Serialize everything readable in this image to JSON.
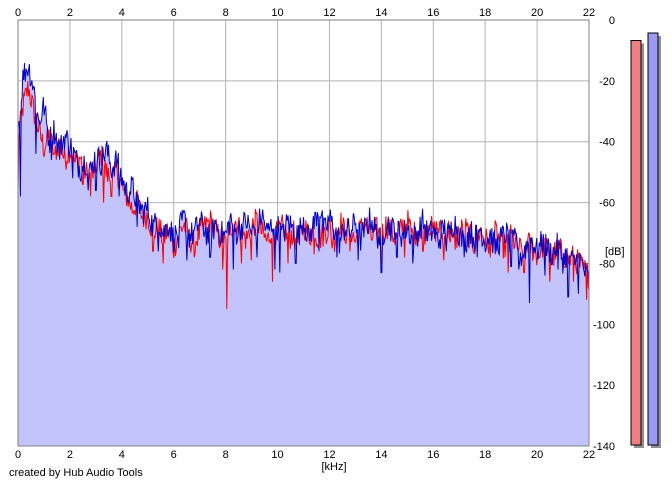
{
  "chart_data": {
    "type": "area",
    "xlabel": "[kHz]",
    "ylabel": "[dB]",
    "xlim": [
      0,
      22
    ],
    "ylim": [
      -140,
      0
    ],
    "x_ticks": [
      "0",
      "2",
      "4",
      "6",
      "8",
      "10",
      "12",
      "14",
      "16",
      "18",
      "20",
      "22"
    ],
    "y_ticks": [
      "0",
      "-20",
      "-40",
      "-60",
      "-80",
      "-100",
      "-120",
      "-140"
    ],
    "grid": true,
    "fill_color": "#c4c4fc",
    "series": [
      {
        "color": "#ff0000",
        "x": [
          0.0,
          0.2,
          0.4,
          0.6,
          0.8,
          1.0,
          1.2,
          1.4,
          1.6,
          1.8,
          2.0,
          2.2,
          2.4,
          2.6,
          2.8,
          3.0,
          3.2,
          3.4,
          3.6,
          3.8,
          4.0,
          4.2,
          4.4,
          4.6,
          4.8,
          5.0,
          5.2,
          5.4,
          5.6,
          5.8,
          6.0,
          6.2,
          6.4,
          6.6,
          6.8,
          7.0,
          7.2,
          7.4,
          7.6,
          7.8,
          8.0,
          8.2,
          8.4,
          8.6,
          8.8,
          9.0,
          9.2,
          9.4,
          9.6,
          9.8,
          10.0,
          10.2,
          10.4,
          10.6,
          10.8,
          11.0,
          11.2,
          11.4,
          11.6,
          11.8,
          12.0,
          12.2,
          12.4,
          12.6,
          12.8,
          13.0,
          13.2,
          13.4,
          13.6,
          13.8,
          14.0,
          14.2,
          14.4,
          14.6,
          14.8,
          15.0,
          15.2,
          15.4,
          15.6,
          15.8,
          16.0,
          16.2,
          16.4,
          16.6,
          16.8,
          17.0,
          17.2,
          17.4,
          17.6,
          17.8,
          18.0,
          18.2,
          18.4,
          18.6,
          18.8,
          19.0,
          19.2,
          19.4,
          19.6,
          19.8,
          20.0,
          20.2,
          20.4,
          20.6,
          20.8,
          21.0,
          21.2,
          21.4,
          21.6,
          21.8,
          22.0
        ],
        "y": [
          -40,
          -28,
          -22,
          -30,
          -36,
          -42,
          -38,
          -44,
          -40,
          -46,
          -42,
          -47,
          -45,
          -50,
          -52,
          -48,
          -44,
          -50,
          -53,
          -49,
          -55,
          -58,
          -62,
          -60,
          -65,
          -64,
          -70,
          -68,
          -72,
          -69,
          -75,
          -70,
          -67,
          -72,
          -73,
          -70,
          -68,
          -66,
          -69,
          -72,
          -74,
          -68,
          -66,
          -70,
          -72,
          -68,
          -66,
          -70,
          -73,
          -68,
          -71,
          -68,
          -72,
          -70,
          -73,
          -67,
          -71,
          -69,
          -72,
          -70,
          -68,
          -72,
          -66,
          -70,
          -68,
          -73,
          -69,
          -66,
          -72,
          -69,
          -71,
          -67,
          -70,
          -72,
          -68,
          -66,
          -71,
          -69,
          -72,
          -66,
          -70,
          -68,
          -72,
          -69,
          -73,
          -70,
          -68,
          -71,
          -74,
          -69,
          -72,
          -74,
          -70,
          -73,
          -75,
          -71,
          -74,
          -76,
          -73,
          -75,
          -77,
          -74,
          -76,
          -78,
          -75,
          -77,
          -79,
          -78,
          -80,
          -82,
          -84
        ],
        "dips": [
          [
            0.0,
            -56
          ],
          [
            1.4,
            -44
          ],
          [
            2.5,
            -54
          ],
          [
            2.8,
            -58
          ],
          [
            3.3,
            -60
          ],
          [
            3.6,
            -58
          ],
          [
            4.1,
            -56
          ],
          [
            5.2,
            -76
          ],
          [
            5.6,
            -80
          ],
          [
            6.8,
            -78
          ],
          [
            7.9,
            -82
          ],
          [
            8.05,
            -95
          ],
          [
            8.6,
            -80
          ],
          [
            9.0,
            -79
          ],
          [
            9.8,
            -86
          ],
          [
            10.4,
            -80
          ],
          [
            11.4,
            -77
          ],
          [
            12.1,
            -75
          ],
          [
            12.8,
            -76
          ],
          [
            14.0,
            -80
          ],
          [
            14.9,
            -78
          ],
          [
            15.6,
            -76
          ],
          [
            16.4,
            -79
          ],
          [
            17.2,
            -77
          ],
          [
            18.2,
            -78
          ],
          [
            18.9,
            -83
          ],
          [
            19.5,
            -83
          ],
          [
            20.1,
            -78
          ],
          [
            20.5,
            -86
          ],
          [
            21.4,
            -86
          ],
          [
            21.9,
            -92
          ]
        ]
      },
      {
        "color": "#0000cc",
        "x": [
          0.0,
          0.2,
          0.4,
          0.6,
          0.8,
          1.0,
          1.2,
          1.4,
          1.6,
          1.8,
          2.0,
          2.2,
          2.4,
          2.6,
          2.8,
          3.0,
          3.2,
          3.4,
          3.6,
          3.8,
          4.0,
          4.2,
          4.4,
          4.6,
          4.8,
          5.0,
          5.2,
          5.4,
          5.6,
          5.8,
          6.0,
          6.2,
          6.4,
          6.6,
          6.8,
          7.0,
          7.2,
          7.4,
          7.6,
          7.8,
          8.0,
          8.2,
          8.4,
          8.6,
          8.8,
          9.0,
          9.2,
          9.4,
          9.6,
          9.8,
          10.0,
          10.2,
          10.4,
          10.6,
          10.8,
          11.0,
          11.2,
          11.4,
          11.6,
          11.8,
          12.0,
          12.2,
          12.4,
          12.6,
          12.8,
          13.0,
          13.2,
          13.4,
          13.6,
          13.8,
          14.0,
          14.2,
          14.4,
          14.6,
          14.8,
          15.0,
          15.2,
          15.4,
          15.6,
          15.8,
          16.0,
          16.2,
          16.4,
          16.6,
          16.8,
          17.0,
          17.2,
          17.4,
          17.6,
          17.8,
          18.0,
          18.2,
          18.4,
          18.6,
          18.8,
          19.0,
          19.2,
          19.4,
          19.6,
          19.8,
          20.0,
          20.2,
          20.4,
          20.6,
          20.8,
          21.0,
          21.2,
          21.4,
          21.6,
          21.8,
          22.0
        ],
        "y": [
          -36,
          -18,
          -15,
          -22,
          -34,
          -28,
          -40,
          -36,
          -43,
          -38,
          -41,
          -45,
          -49,
          -46,
          -50,
          -44,
          -47,
          -42,
          -49,
          -46,
          -52,
          -57,
          -55,
          -60,
          -63,
          -62,
          -68,
          -66,
          -70,
          -67,
          -72,
          -69,
          -65,
          -71,
          -70,
          -66,
          -69,
          -72,
          -67,
          -70,
          -71,
          -65,
          -70,
          -68,
          -66,
          -70,
          -68,
          -64,
          -70,
          -67,
          -68,
          -71,
          -66,
          -69,
          -71,
          -65,
          -72,
          -67,
          -61,
          -70,
          -65,
          -69,
          -73,
          -68,
          -70,
          -66,
          -72,
          -68,
          -65,
          -70,
          -73,
          -66,
          -69,
          -67,
          -71,
          -68,
          -72,
          -70,
          -66,
          -71,
          -69,
          -73,
          -68,
          -71,
          -66,
          -70,
          -74,
          -69,
          -72,
          -68,
          -73,
          -70,
          -75,
          -72,
          -70,
          -74,
          -72,
          -78,
          -74,
          -72,
          -76,
          -73,
          -75,
          -77,
          -74,
          -79,
          -76,
          -80,
          -78,
          -82,
          -86
        ],
        "dips": [
          [
            0.1,
            -58
          ],
          [
            0.7,
            -44
          ],
          [
            1.3,
            -46
          ],
          [
            2.1,
            -52
          ],
          [
            2.7,
            -56
          ],
          [
            3.0,
            -56
          ],
          [
            3.9,
            -58
          ],
          [
            4.6,
            -68
          ],
          [
            5.4,
            -76
          ],
          [
            6.2,
            -75
          ],
          [
            6.5,
            -79
          ],
          [
            7.4,
            -78
          ],
          [
            8.3,
            -82
          ],
          [
            9.2,
            -78
          ],
          [
            9.9,
            -82
          ],
          [
            10.1,
            -83
          ],
          [
            10.7,
            -80
          ],
          [
            11.6,
            -76
          ],
          [
            12.3,
            -78
          ],
          [
            13.1,
            -79
          ],
          [
            14.0,
            -83
          ],
          [
            14.6,
            -78
          ],
          [
            15.2,
            -80
          ],
          [
            16.5,
            -76
          ],
          [
            17.7,
            -78
          ],
          [
            19.0,
            -81
          ],
          [
            19.3,
            -82
          ],
          [
            19.7,
            -93
          ],
          [
            20.3,
            -84
          ],
          [
            20.8,
            -82
          ],
          [
            21.2,
            -91
          ],
          [
            21.6,
            -90
          ]
        ]
      }
    ],
    "level_meters": [
      {
        "color": "#f08080",
        "level": 0.97
      },
      {
        "color": "#9a9af4",
        "level": 0.988
      }
    ]
  },
  "footer": {
    "credit": "created by Hub Audio Tools"
  }
}
